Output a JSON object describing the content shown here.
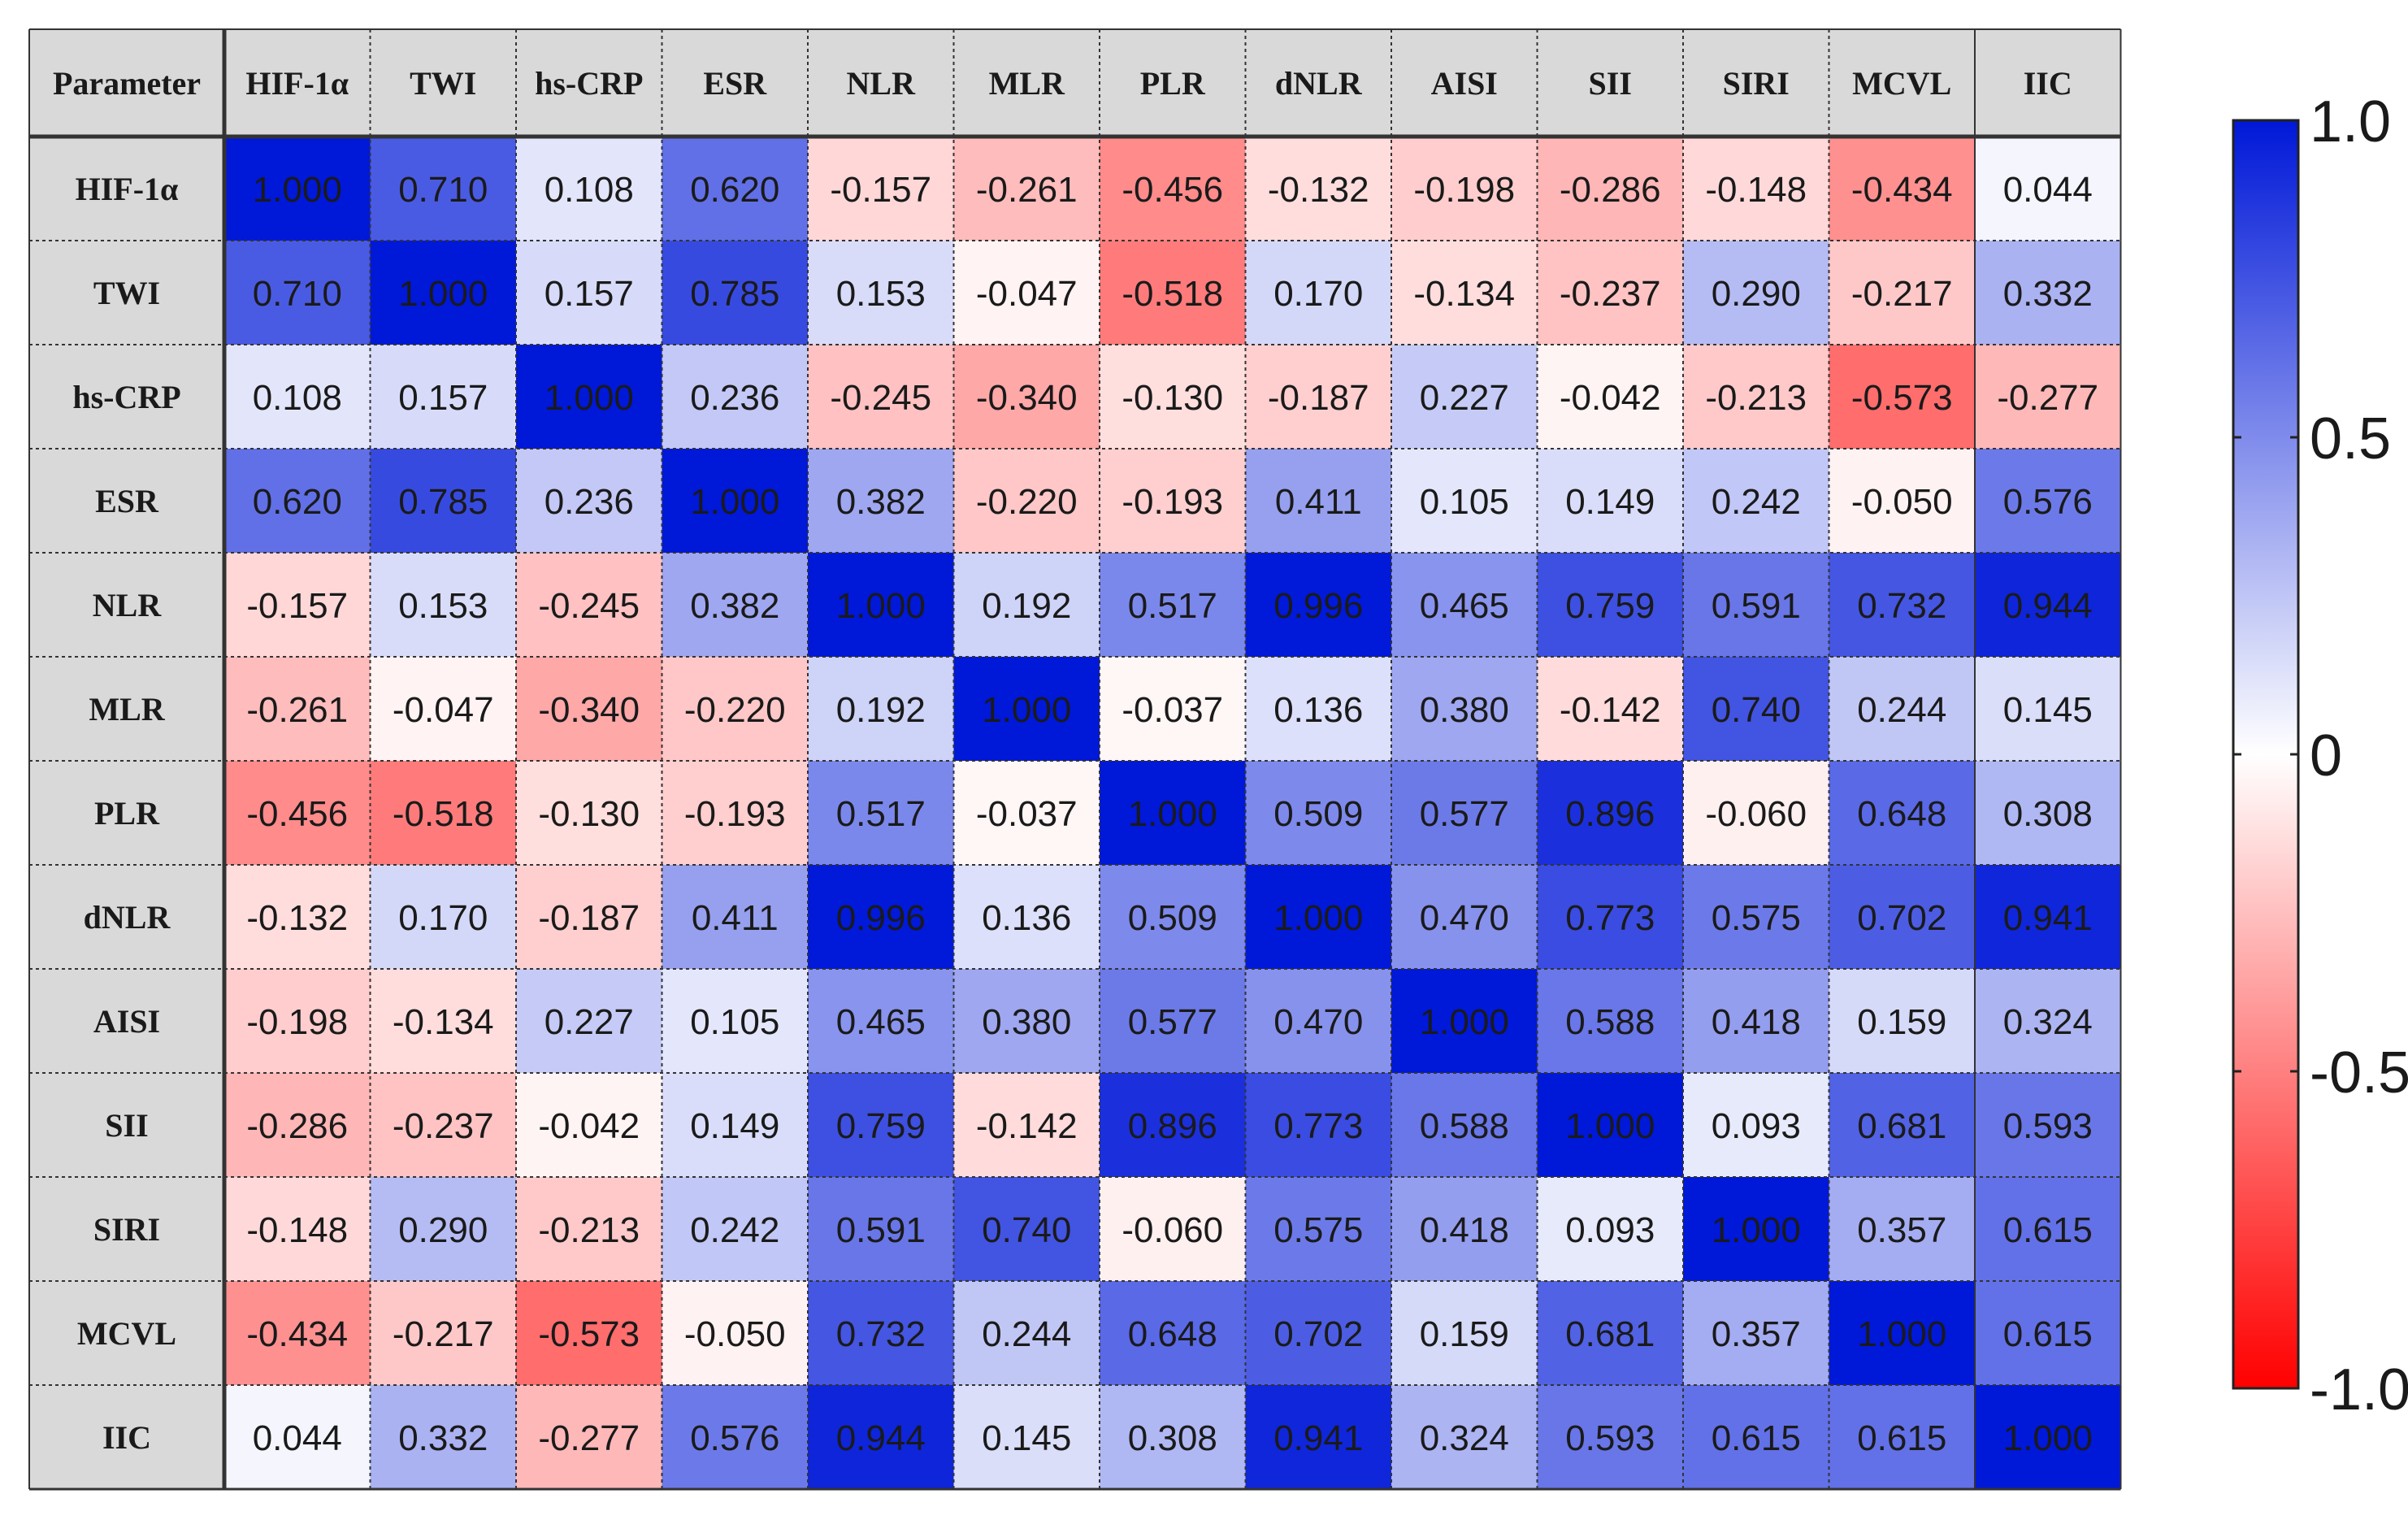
{
  "chart_data": {
    "type": "heatmap",
    "corner_label": "Parameter",
    "columns": [
      "HIF-1α",
      "TWI",
      "hs-CRP",
      "ESR",
      "NLR",
      "MLR",
      "PLR",
      "dNLR",
      "AISI",
      "SII",
      "SIRI",
      "MCVL",
      "IIC"
    ],
    "rows": [
      "HIF-1α",
      "TWI",
      "hs-CRP",
      "ESR",
      "NLR",
      "MLR",
      "PLR",
      "dNLR",
      "AISI",
      "SII",
      "SIRI",
      "MCVL",
      "IIC"
    ],
    "values": [
      [
        1.0,
        0.71,
        0.108,
        0.62,
        -0.157,
        -0.261,
        -0.456,
        -0.132,
        -0.198,
        -0.286,
        -0.148,
        -0.434,
        0.044
      ],
      [
        0.71,
        1.0,
        0.157,
        0.785,
        0.153,
        -0.047,
        -0.518,
        0.17,
        -0.134,
        -0.237,
        0.29,
        -0.217,
        0.332
      ],
      [
        0.108,
        0.157,
        1.0,
        0.236,
        -0.245,
        -0.34,
        -0.13,
        -0.187,
        0.227,
        -0.042,
        -0.213,
        -0.573,
        -0.277
      ],
      [
        0.62,
        0.785,
        0.236,
        1.0,
        0.382,
        -0.22,
        -0.193,
        0.411,
        0.105,
        0.149,
        0.242,
        -0.05,
        0.576
      ],
      [
        -0.157,
        0.153,
        -0.245,
        0.382,
        1.0,
        0.192,
        0.517,
        0.996,
        0.465,
        0.759,
        0.591,
        0.732,
        0.944
      ],
      [
        -0.261,
        -0.047,
        -0.34,
        -0.22,
        0.192,
        1.0,
        -0.037,
        0.136,
        0.38,
        -0.142,
        0.74,
        0.244,
        0.145
      ],
      [
        -0.456,
        -0.518,
        -0.13,
        -0.193,
        0.517,
        -0.037,
        1.0,
        0.509,
        0.577,
        0.896,
        -0.06,
        0.648,
        0.308
      ],
      [
        -0.132,
        0.17,
        -0.187,
        0.411,
        0.996,
        0.136,
        0.509,
        1.0,
        0.47,
        0.773,
        0.575,
        0.702,
        0.941
      ],
      [
        -0.198,
        -0.134,
        0.227,
        0.105,
        0.465,
        0.38,
        0.577,
        0.47,
        1.0,
        0.588,
        0.418,
        0.159,
        0.324
      ],
      [
        -0.286,
        -0.237,
        -0.042,
        0.149,
        0.759,
        -0.142,
        0.896,
        0.773,
        0.588,
        1.0,
        0.093,
        0.681,
        0.593
      ],
      [
        -0.148,
        0.29,
        -0.213,
        0.242,
        0.591,
        0.74,
        -0.06,
        0.575,
        0.418,
        0.093,
        1.0,
        0.357,
        0.615
      ],
      [
        -0.434,
        -0.217,
        -0.573,
        -0.05,
        0.732,
        0.244,
        0.648,
        0.702,
        0.159,
        0.681,
        0.357,
        1.0,
        0.615
      ],
      [
        0.044,
        0.332,
        -0.277,
        0.576,
        0.944,
        0.145,
        0.308,
        0.941,
        0.324,
        0.593,
        0.615,
        0.615,
        1.0
      ]
    ],
    "value_range": [
      -1.0,
      1.0
    ],
    "colorbar": {
      "ticks": [
        "1.0",
        "0.5",
        "0",
        "-0.5",
        "-1.0"
      ],
      "tick_values": [
        1.0,
        0.5,
        0,
        -0.5,
        -1.0
      ],
      "color_max": "#0018d8",
      "color_mid": "#ffffff",
      "color_min": "#ff0000"
    },
    "header_color": "#d9d9d9",
    "grid": true,
    "legend_placement": "right"
  }
}
